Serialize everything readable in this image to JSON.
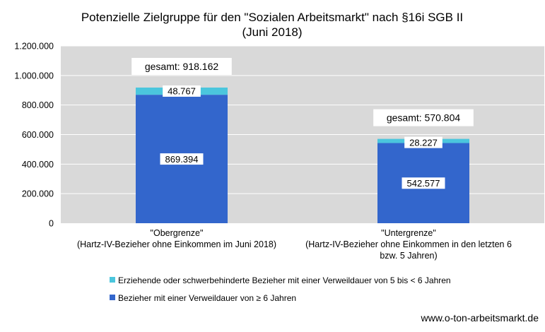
{
  "chart_data": {
    "type": "bar",
    "stacked": true,
    "title_line1": "Potenzielle Zielgruppe für den \"Sozialen Arbeitsmarkt\" nach §16i SGB II",
    "title_line2": "(Juni 2018)",
    "categories": [
      {
        "label_line1": "\"Obergrenze\"",
        "label_line2": "(Hartz-IV-Bezieher ohne Einkommen im Juni 2018)",
        "label_line3": ""
      },
      {
        "label_line1": "\"Untergrenze\"",
        "label_line2": "(Hartz-IV-Bezieher ohne Einkommen in den letzten 6",
        "label_line3": "bzw. 5 Jahren)"
      }
    ],
    "series": [
      {
        "name": "Bezieher mit einer Verweildauer  von ≥ 6 Jahren",
        "color": "#3366cc",
        "values": [
          869394,
          542577
        ],
        "value_labels": [
          "869.394",
          "542.577"
        ]
      },
      {
        "name": "Erziehende oder schwerbehinderte Bezieher mit einer Verweildauer von 5 bis < 6 Jahren",
        "color": "#4bc6dd",
        "values": [
          48767,
          28227
        ],
        "value_labels": [
          "48.767",
          "28.227"
        ]
      }
    ],
    "totals": [
      918162,
      570804
    ],
    "total_labels": [
      "gesamt: 918.162",
      "gesamt: 570.804"
    ],
    "ylim": [
      0,
      1200000
    ],
    "yticks": [
      0,
      200000,
      400000,
      600000,
      800000,
      1000000,
      1200000
    ],
    "ytick_labels": [
      "0",
      "200.000",
      "400.000",
      "600.000",
      "800.000",
      "1.000.000",
      "1.200.000"
    ],
    "grid": true,
    "legend_position": "bottom-left",
    "legend_order": [
      1,
      0
    ],
    "plot_background": "#d9d9d9",
    "gridline_color": "#ffffff",
    "source_text": "www.o-ton-arbeitsmarkt.de"
  }
}
